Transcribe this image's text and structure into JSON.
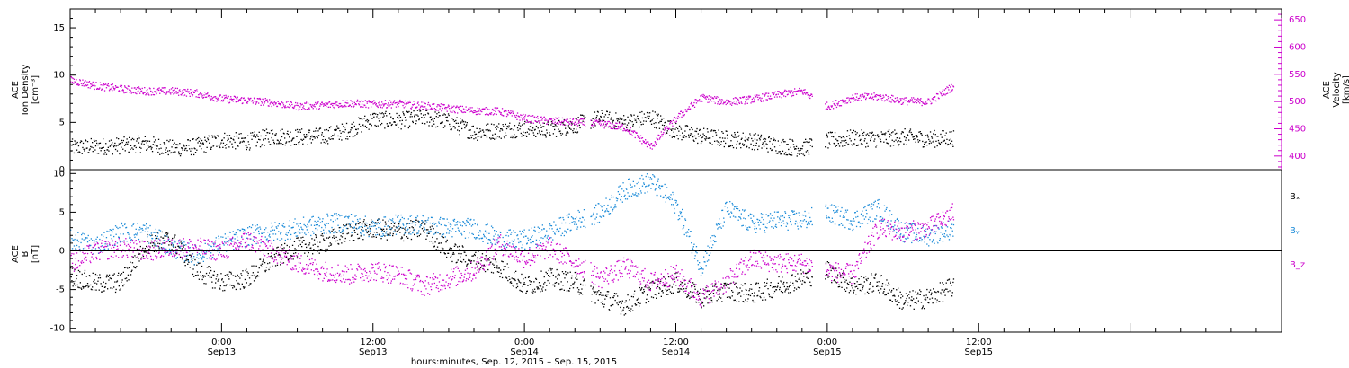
{
  "colors": {
    "black": "#000000",
    "magenta": "#cc00cc",
    "blue": "#1a8ad8"
  },
  "chart_data": [
    {
      "type": "scatter",
      "panel": "top",
      "ylabel_left": [
        "ACE",
        "Ion Density",
        "[cm⁻³]"
      ],
      "ylabel_right": [
        "ACE",
        "Velocity",
        "[km/s]"
      ],
      "xlim_hours": [
        -12,
        84
      ],
      "ylim_left": [
        0,
        17
      ],
      "ylim_right": [
        375,
        670
      ],
      "yticks_left": [
        0,
        5,
        10,
        15
      ],
      "yticks_right": [
        400,
        450,
        500,
        550,
        600,
        650
      ],
      "series": [
        {
          "color": "black",
          "axis": "left",
          "points": [
            [
              -12,
              2.4
            ],
            [
              -10,
              2.5
            ],
            [
              -8,
              2.6
            ],
            [
              -6,
              2.8
            ],
            [
              -4,
              2.3
            ],
            [
              -2,
              2.5
            ],
            [
              0,
              3.2
            ],
            [
              2,
              3.0
            ],
            [
              4,
              3.6
            ],
            [
              6,
              3.5
            ],
            [
              8,
              3.6
            ],
            [
              10,
              4.2
            ],
            [
              12,
              5.4
            ],
            [
              14,
              5.2
            ],
            [
              16,
              5.6
            ],
            [
              18,
              5.1
            ],
            [
              20,
              4.0
            ],
            [
              22,
              4.2
            ],
            [
              24,
              4.4
            ],
            [
              26,
              4.3
            ],
            [
              28,
              4.8
            ],
            [
              30,
              5.5
            ],
            [
              32,
              5.0
            ],
            [
              34,
              5.6
            ],
            [
              36,
              4.1
            ],
            [
              38,
              3.6
            ],
            [
              40,
              3.3
            ],
            [
              42,
              3.1
            ],
            [
              44,
              2.6
            ],
            [
              46,
              2.3
            ],
            [
              48,
              3.1
            ],
            [
              50,
              3.4
            ],
            [
              52,
              3.3
            ],
            [
              54,
              3.5
            ],
            [
              56,
              3.3
            ],
            [
              58,
              3.4
            ]
          ]
        },
        {
          "color": "magenta",
          "axis": "right",
          "points": [
            [
              -12,
              540
            ],
            [
              -10,
              530
            ],
            [
              -8,
              524
            ],
            [
              -6,
              520
            ],
            [
              -4,
              520
            ],
            [
              -2,
              516
            ],
            [
              0,
              506
            ],
            [
              2,
              503
            ],
            [
              4,
              499
            ],
            [
              6,
              492
            ],
            [
              8,
              494
            ],
            [
              10,
              498
            ],
            [
              12,
              496
            ],
            [
              14,
              497
            ],
            [
              16,
              493
            ],
            [
              18,
              488
            ],
            [
              20,
              484
            ],
            [
              22,
              483
            ],
            [
              24,
              470
            ],
            [
              26,
              465
            ],
            [
              28,
              463
            ],
            [
              30,
              460
            ],
            [
              32,
              453
            ],
            [
              34,
              418
            ],
            [
              36,
              470
            ],
            [
              38,
              508
            ],
            [
              40,
              500
            ],
            [
              42,
              505
            ],
            [
              44,
              513
            ],
            [
              46,
              520
            ],
            [
              48,
              492
            ],
            [
              50,
              508
            ],
            [
              52,
              510
            ],
            [
              54,
              502
            ],
            [
              56,
              500
            ],
            [
              58,
              530
            ]
          ]
        }
      ]
    },
    {
      "type": "scatter",
      "panel": "bottom",
      "ylabel_left": [
        "ACE",
        "B",
        "[nT]"
      ],
      "xlim_hours": [
        -12,
        84
      ],
      "ylim": [
        -10.5,
        10.5
      ],
      "yticks": [
        -10,
        -5,
        0,
        5,
        10
      ],
      "xticks": [
        {
          "h": 0,
          "time": "0:00",
          "date": "Sep13"
        },
        {
          "h": 12,
          "time": "12:00",
          "date": "Sep13"
        },
        {
          "h": 24,
          "time": "0:00",
          "date": "Sep14"
        },
        {
          "h": 36,
          "time": "12:00",
          "date": "Sep14"
        },
        {
          "h": 48,
          "time": "0:00",
          "date": "Sep15"
        },
        {
          "h": 60,
          "time": "12:00",
          "date": "Sep15"
        }
      ],
      "xlabel": "hours:minutes, Sep. 12, 2015 – Sep. 15, 2015",
      "legend": [
        {
          "label": "Bₓ",
          "color": "black"
        },
        {
          "label": "Bᵧ",
          "color": "blue"
        },
        {
          "label": "B_z",
          "color": "magenta"
        }
      ],
      "series": [
        {
          "name": "Bₓ",
          "color": "black",
          "points": [
            [
              -12,
              -3.2
            ],
            [
              -10,
              -4.2
            ],
            [
              -8,
              -4.0
            ],
            [
              -6,
              1.0
            ],
            [
              -4,
              1.5
            ],
            [
              -2,
              -2.5
            ],
            [
              0,
              -4.0
            ],
            [
              2,
              -3.5
            ],
            [
              4,
              -1.0
            ],
            [
              6,
              0.5
            ],
            [
              8,
              1.0
            ],
            [
              10,
              2.5
            ],
            [
              12,
              3.0
            ],
            [
              14,
              2.5
            ],
            [
              16,
              3.0
            ],
            [
              18,
              0.0
            ],
            [
              20,
              -1.0
            ],
            [
              22,
              -2.0
            ],
            [
              24,
              -4.5
            ],
            [
              26,
              -3.5
            ],
            [
              28,
              -4.0
            ],
            [
              30,
              -6.0
            ],
            [
              32,
              -7.0
            ],
            [
              34,
              -5.0
            ],
            [
              36,
              -4.0
            ],
            [
              38,
              -6.0
            ],
            [
              40,
              -5.0
            ],
            [
              42,
              -5.5
            ],
            [
              44,
              -4.5
            ],
            [
              46,
              -3.5
            ],
            [
              48,
              -2.5
            ],
            [
              50,
              -4.5
            ],
            [
              52,
              -4.0
            ],
            [
              54,
              -6.5
            ],
            [
              56,
              -6.0
            ],
            [
              58,
              -4.5
            ]
          ]
        },
        {
          "name": "Bᵧ",
          "color": "blue",
          "points": [
            [
              -12,
              1.5
            ],
            [
              -10,
              0.8
            ],
            [
              -8,
              2.5
            ],
            [
              -6,
              2.5
            ],
            [
              -4,
              0.5
            ],
            [
              -2,
              -0.5
            ],
            [
              0,
              1.0
            ],
            [
              2,
              2.0
            ],
            [
              4,
              2.5
            ],
            [
              6,
              3.0
            ],
            [
              8,
              3.5
            ],
            [
              10,
              3.8
            ],
            [
              12,
              3.0
            ],
            [
              14,
              3.5
            ],
            [
              16,
              3.5
            ],
            [
              18,
              3.0
            ],
            [
              20,
              3.0
            ],
            [
              22,
              1.5
            ],
            [
              24,
              1.5
            ],
            [
              26,
              2.5
            ],
            [
              28,
              4.0
            ],
            [
              30,
              5.0
            ],
            [
              32,
              8.0
            ],
            [
              34,
              9.0
            ],
            [
              36,
              6.0
            ],
            [
              38,
              -2.0
            ],
            [
              40,
              5.5
            ],
            [
              42,
              3.5
            ],
            [
              44,
              4.0
            ],
            [
              46,
              4.0
            ],
            [
              48,
              5.0
            ],
            [
              50,
              4.0
            ],
            [
              52,
              5.5
            ],
            [
              54,
              2.5
            ],
            [
              56,
              2.0
            ],
            [
              58,
              3.0
            ]
          ]
        },
        {
          "name": "B_z",
          "color": "magenta",
          "points": [
            [
              -12,
              -1.5
            ],
            [
              -10,
              0.0
            ],
            [
              -8,
              0.5
            ],
            [
              -6,
              0.0
            ],
            [
              -4,
              0.5
            ],
            [
              -2,
              0.5
            ],
            [
              0,
              0.0
            ],
            [
              2,
              1.5
            ],
            [
              4,
              0.0
            ],
            [
              6,
              -1.5
            ],
            [
              8,
              -2.5
            ],
            [
              10,
              -3.0
            ],
            [
              12,
              -2.5
            ],
            [
              14,
              -3.0
            ],
            [
              16,
              -4.5
            ],
            [
              18,
              -3.5
            ],
            [
              20,
              -2.5
            ],
            [
              22,
              1.0
            ],
            [
              24,
              -1.0
            ],
            [
              26,
              0.5
            ],
            [
              28,
              -1.5
            ],
            [
              30,
              -3.5
            ],
            [
              32,
              -2.0
            ],
            [
              34,
              -4.0
            ],
            [
              36,
              -3.0
            ],
            [
              38,
              -6.0
            ],
            [
              40,
              -4.0
            ],
            [
              42,
              -1.0
            ],
            [
              44,
              -1.5
            ],
            [
              46,
              -1.5
            ],
            [
              48,
              -2.5
            ],
            [
              50,
              -3.0
            ],
            [
              52,
              3.0
            ],
            [
              54,
              2.5
            ],
            [
              56,
              3.0
            ],
            [
              58,
              5.0
            ]
          ]
        }
      ]
    }
  ]
}
